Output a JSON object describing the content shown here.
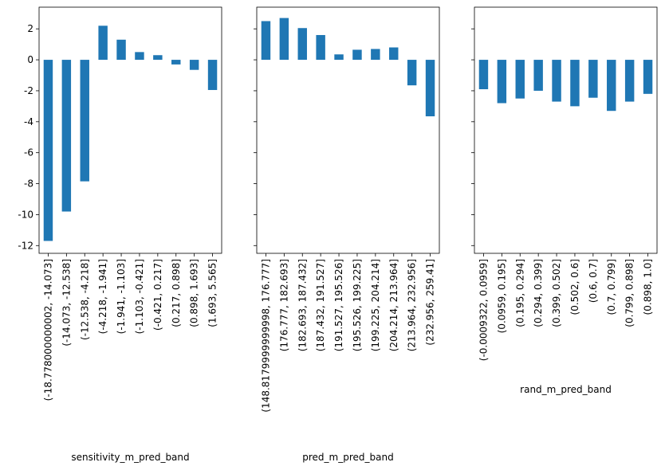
{
  "chart_data": [
    {
      "type": "bar",
      "xlabel": "sensitivity_m_pred_band",
      "ylabel": "",
      "ylim": [
        -12.5,
        3.4
      ],
      "yticks": [
        2,
        0,
        -2,
        -4,
        -6,
        -8,
        -10,
        -12
      ],
      "show_y_tick_labels": true,
      "bar_color": "#1f77b4",
      "categories": [
        "(-18.778000000002, -14.073]",
        "(-14.073, -12.538]",
        "(-12.538, -4.218]",
        "(-4.218, -1.941]",
        "(-1.941, -1.103]",
        "(-1.103, -0.421]",
        "(-0.421, 0.217]",
        "(0.217, 0.898]",
        "(0.898, 1.693]",
        "(1.693, 5.565]"
      ],
      "values": [
        -11.7,
        -9.8,
        -7.85,
        2.2,
        1.3,
        0.5,
        0.3,
        -0.3,
        -0.65,
        -1.95
      ]
    },
    {
      "type": "bar",
      "xlabel": "pred_m_pred_band",
      "ylabel": "",
      "ylim": [
        -12.5,
        3.4
      ],
      "yticks": [
        2,
        0,
        -2,
        -4,
        -6,
        -8,
        -10,
        -12
      ],
      "show_y_tick_labels": false,
      "bar_color": "#1f77b4",
      "categories": [
        "(148.8179999999998, 176.777]",
        "(176.777, 182.693]",
        "(182.693, 187.432]",
        "(187.432, 191.527]",
        "(191.527, 195.526]",
        "(195.526, 199.225]",
        "(199.225, 204.214]",
        "(204.214, 213.964]",
        "(213.964, 232.956]",
        "(232.956, 259.41]"
      ],
      "values": [
        2.5,
        2.7,
        2.05,
        1.6,
        0.35,
        0.65,
        0.7,
        0.8,
        -1.65,
        -3.65
      ]
    },
    {
      "type": "bar",
      "xlabel": "rand_m_pred_band",
      "ylabel": "",
      "ylim": [
        -12.5,
        3.4
      ],
      "yticks": [
        2,
        0,
        -2,
        -4,
        -6,
        -8,
        -10,
        -12
      ],
      "show_y_tick_labels": false,
      "bar_color": "#1f77b4",
      "categories": [
        "(-0.0009322, 0.0959]",
        "(0.0959, 0.195]",
        "(0.195, 0.294]",
        "(0.294, 0.399]",
        "(0.399, 0.502]",
        "(0.502, 0.6]",
        "(0.6, 0.7]",
        "(0.7, 0.799]",
        "(0.799, 0.898]",
        "(0.898, 1.0]"
      ],
      "values": [
        -1.9,
        -2.8,
        -2.5,
        -2.0,
        -2.7,
        -3.0,
        -2.45,
        -3.3,
        -2.7,
        -2.2
      ]
    }
  ]
}
